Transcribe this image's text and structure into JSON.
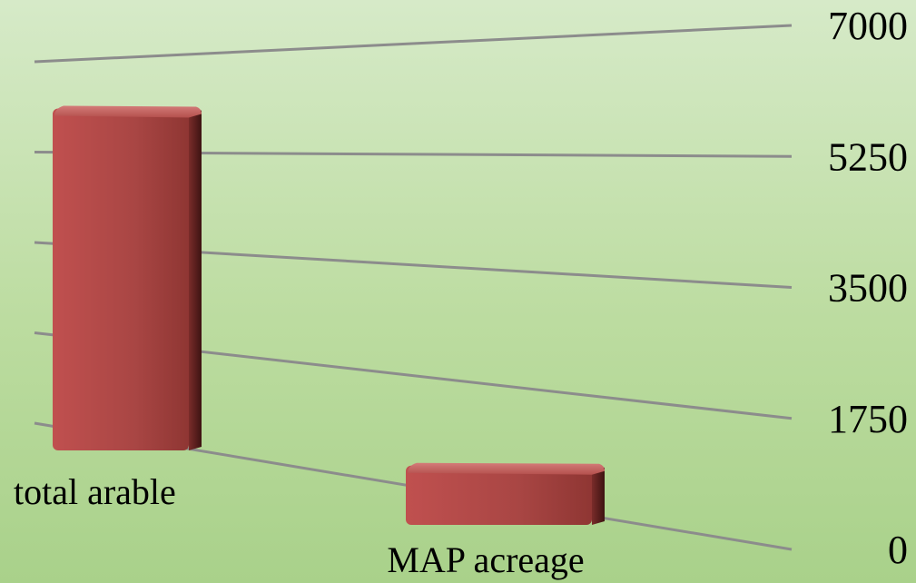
{
  "chart_data": {
    "type": "bar",
    "categories": [
      "total arable",
      "MAP acreage"
    ],
    "values": [
      6300,
      900
    ],
    "ylim": [
      0,
      7000
    ],
    "y_ticks": [
      "0",
      "1750",
      "3500",
      "5250",
      "7000"
    ],
    "y_axis_position": "right",
    "grid": true,
    "legend": "none",
    "bar_color": "#b34a4a",
    "bar_dark_color": "#5e1f1f",
    "bar_light_color": "#c96a68"
  }
}
